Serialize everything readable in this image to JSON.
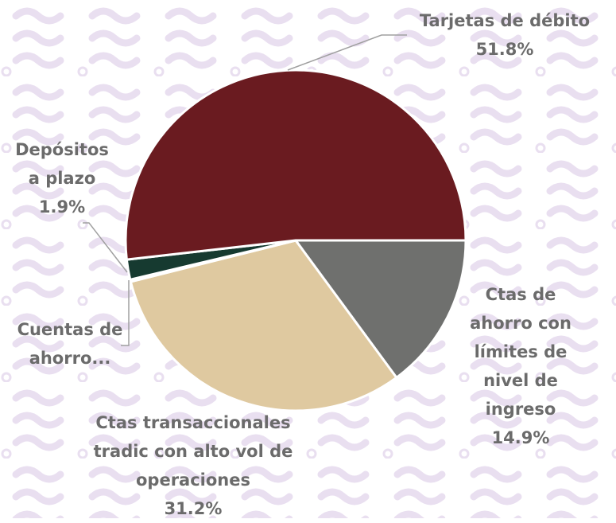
{
  "chart_data": {
    "type": "pie",
    "categories": [
      "Ctas de ahorro con límites de nivel de ingreso",
      "Ctas transaccionales tradic con alto vol de operaciones",
      "Cuentas de ahorro...",
      "Depósitos a plazo",
      "Tarjetas de débito"
    ],
    "values": [
      14.9,
      31.2,
      0.2,
      1.9,
      51.8
    ],
    "value_labels": [
      "14.9%",
      "31.2%",
      null,
      "1.9%",
      "51.8%"
    ],
    "colors": [
      "#6f706e",
      "#dfc9a0",
      "#9d2449",
      "#163a30",
      "#6a1b20"
    ]
  }
}
